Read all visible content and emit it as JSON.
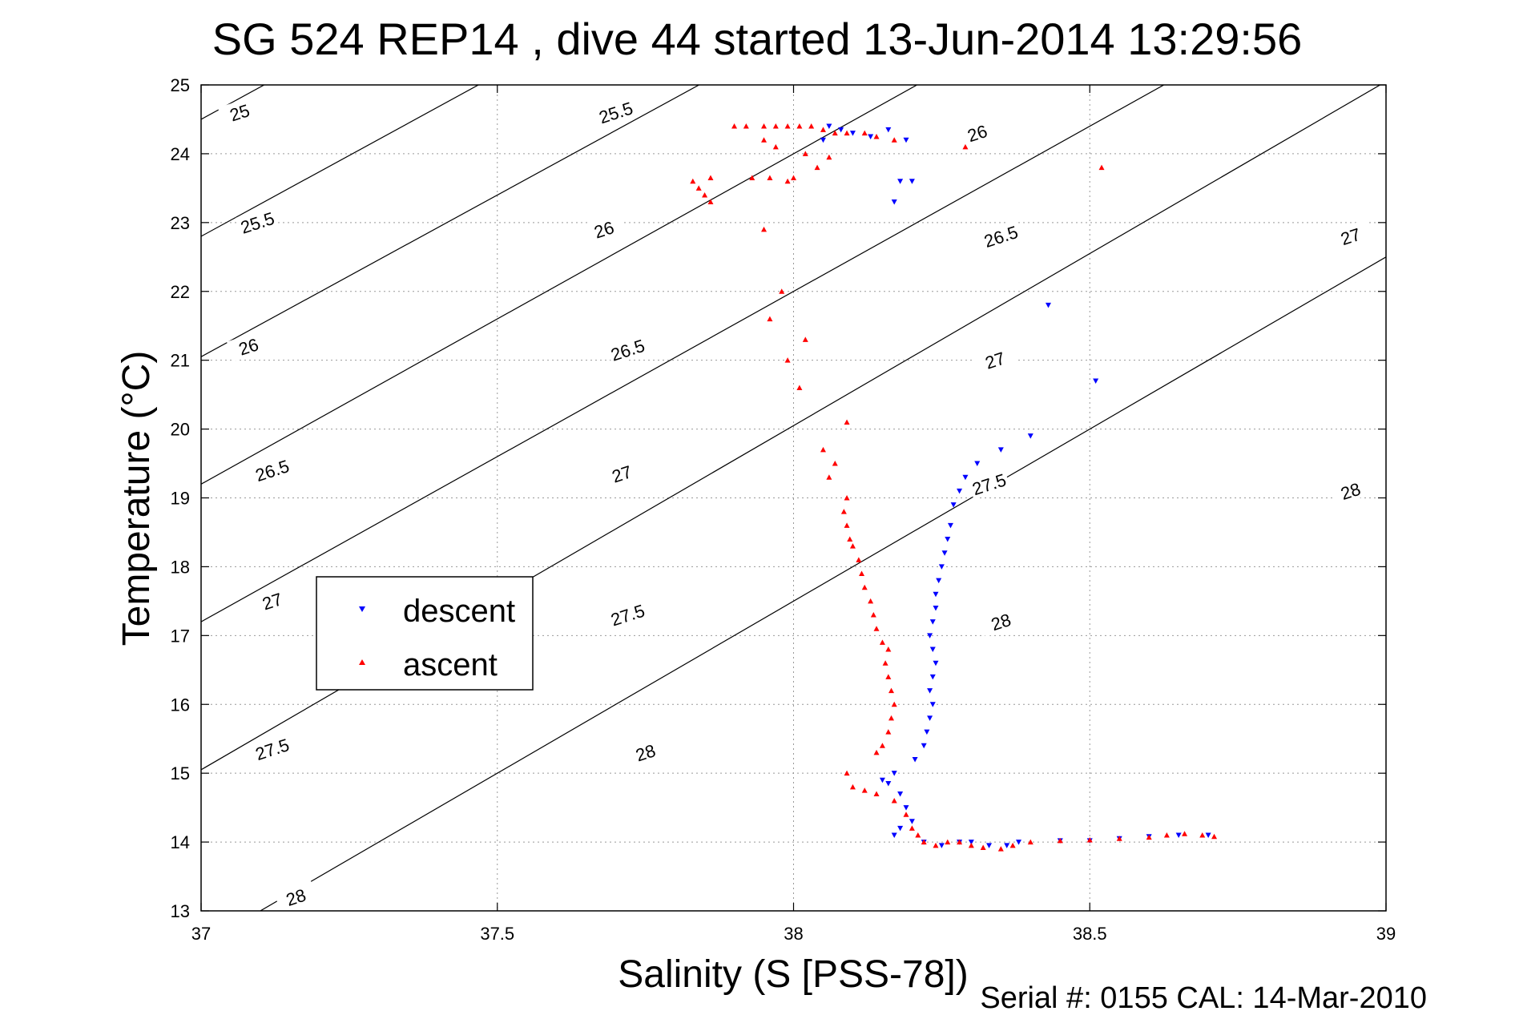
{
  "chart_data": {
    "type": "scatter",
    "title": "SG 524   REP14  , dive 44 started 13-Jun-2014 13:29:56",
    "xlabel": "Salinity (S [PSS-78])",
    "ylabel": "Temperature (°C)",
    "xlim": [
      37,
      39
    ],
    "ylim": [
      13,
      25
    ],
    "x_ticks": [
      "37",
      "37.5",
      "38",
      "38.5",
      "39"
    ],
    "y_ticks": [
      "13",
      "14",
      "15",
      "16",
      "17",
      "18",
      "19",
      "20",
      "21",
      "22",
      "23",
      "24",
      "25"
    ],
    "grid": true,
    "legend_position": "middle-left",
    "footer": "Serial #: 0155  CAL: 14-Mar-2010",
    "contours": [
      {
        "label": "25",
        "S0": 37.0,
        "T0": 24.5,
        "slope": 4.7
      },
      {
        "label": "25.5",
        "S0": 37.0,
        "T0": 22.8,
        "slope": 4.7
      },
      {
        "label": "26",
        "S0": 37.0,
        "T0": 21.05,
        "slope": 4.7
      },
      {
        "label": "26.5",
        "S0": 37.0,
        "T0": 19.2,
        "slope": 4.8
      },
      {
        "label": "27",
        "S0": 37.0,
        "T0": 17.2,
        "slope": 4.8
      },
      {
        "label": "27.5",
        "S0": 37.0,
        "T0": 15.05,
        "slope": 5.0
      },
      {
        "label": "28",
        "S0": 37.0,
        "T0": 12.5,
        "slope": 5.0
      }
    ],
    "contour_labels": [
      {
        "text": "25",
        "x": 37.065,
        "y": 24.6
      },
      {
        "text": "25.5",
        "x": 37.095,
        "y": 23.0
      },
      {
        "text": "26",
        "x": 37.08,
        "y": 21.2
      },
      {
        "text": "26.5",
        "x": 37.12,
        "y": 19.4
      },
      {
        "text": "27",
        "x": 37.12,
        "y": 17.5
      },
      {
        "text": "27.5",
        "x": 37.12,
        "y": 15.35
      },
      {
        "text": "28",
        "x": 37.16,
        "y": 13.2
      },
      {
        "text": "25.5",
        "x": 37.7,
        "y": 24.6
      },
      {
        "text": "26",
        "x": 37.68,
        "y": 22.9
      },
      {
        "text": "26.5",
        "x": 37.72,
        "y": 21.15
      },
      {
        "text": "27",
        "x": 37.71,
        "y": 19.35
      },
      {
        "text": "27.5",
        "x": 37.72,
        "y": 17.3
      },
      {
        "text": "28",
        "x": 37.75,
        "y": 15.3
      },
      {
        "text": "26",
        "x": 38.31,
        "y": 24.3
      },
      {
        "text": "26.5",
        "x": 38.35,
        "y": 22.8
      },
      {
        "text": "27",
        "x": 38.34,
        "y": 21.0
      },
      {
        "text": "27.5",
        "x": 38.33,
        "y": 19.2
      },
      {
        "text": "28",
        "x": 38.35,
        "y": 17.2
      },
      {
        "text": "27",
        "x": 38.94,
        "y": 22.8
      },
      {
        "text": "28",
        "x": 38.94,
        "y": 19.1
      }
    ],
    "series": [
      {
        "name": "descent",
        "color": "#0000ff",
        "marker": "triangle-down",
        "points": [
          [
            38.06,
            24.4
          ],
          [
            38.08,
            24.35
          ],
          [
            38.1,
            24.3
          ],
          [
            38.13,
            24.25
          ],
          [
            38.16,
            24.35
          ],
          [
            38.19,
            24.2
          ],
          [
            38.05,
            24.2
          ],
          [
            38.18,
            23.6
          ],
          [
            38.2,
            23.6
          ],
          [
            38.17,
            23.3
          ],
          [
            38.43,
            21.8
          ],
          [
            38.51,
            20.7
          ],
          [
            38.4,
            19.9
          ],
          [
            38.35,
            19.7
          ],
          [
            38.31,
            19.5
          ],
          [
            38.29,
            19.3
          ],
          [
            38.28,
            19.1
          ],
          [
            38.27,
            18.9
          ],
          [
            38.265,
            18.6
          ],
          [
            38.26,
            18.4
          ],
          [
            38.255,
            18.2
          ],
          [
            38.25,
            18.0
          ],
          [
            38.245,
            17.8
          ],
          [
            38.24,
            17.6
          ],
          [
            38.24,
            17.4
          ],
          [
            38.235,
            17.2
          ],
          [
            38.23,
            17.0
          ],
          [
            38.235,
            16.8
          ],
          [
            38.24,
            16.6
          ],
          [
            38.235,
            16.4
          ],
          [
            38.23,
            16.2
          ],
          [
            38.235,
            16.0
          ],
          [
            38.23,
            15.8
          ],
          [
            38.225,
            15.6
          ],
          [
            38.22,
            15.4
          ],
          [
            38.205,
            15.2
          ],
          [
            38.17,
            15.0
          ],
          [
            38.16,
            14.85
          ],
          [
            38.15,
            14.9
          ],
          [
            38.18,
            14.7
          ],
          [
            38.19,
            14.5
          ],
          [
            38.2,
            14.3
          ],
          [
            38.18,
            14.2
          ],
          [
            38.17,
            14.1
          ],
          [
            38.22,
            14.0
          ],
          [
            38.25,
            13.95
          ],
          [
            38.28,
            14.0
          ],
          [
            38.3,
            14.0
          ],
          [
            38.33,
            13.95
          ],
          [
            38.36,
            13.95
          ],
          [
            38.38,
            14.0
          ],
          [
            38.45,
            14.02
          ],
          [
            38.5,
            14.02
          ],
          [
            38.55,
            14.05
          ],
          [
            38.6,
            14.08
          ],
          [
            38.65,
            14.1
          ],
          [
            38.7,
            14.1
          ]
        ]
      },
      {
        "name": "ascent",
        "color": "#ff0000",
        "marker": "triangle-up",
        "points": [
          [
            37.9,
            24.4
          ],
          [
            37.92,
            24.4
          ],
          [
            37.95,
            24.4
          ],
          [
            37.97,
            24.4
          ],
          [
            37.99,
            24.4
          ],
          [
            38.01,
            24.4
          ],
          [
            38.03,
            24.4
          ],
          [
            38.05,
            24.35
          ],
          [
            38.07,
            24.3
          ],
          [
            38.09,
            24.3
          ],
          [
            38.12,
            24.3
          ],
          [
            38.14,
            24.25
          ],
          [
            38.17,
            24.2
          ],
          [
            38.29,
            24.1
          ],
          [
            38.52,
            23.8
          ],
          [
            37.95,
            24.2
          ],
          [
            37.97,
            24.1
          ],
          [
            38.02,
            24.0
          ],
          [
            38.06,
            23.95
          ],
          [
            38.04,
            23.8
          ],
          [
            38.0,
            23.65
          ],
          [
            37.99,
            23.6
          ],
          [
            37.93,
            23.65
          ],
          [
            37.96,
            23.65
          ],
          [
            37.86,
            23.65
          ],
          [
            37.83,
            23.6
          ],
          [
            37.84,
            23.5
          ],
          [
            37.85,
            23.4
          ],
          [
            37.86,
            23.3
          ],
          [
            37.95,
            22.9
          ],
          [
            37.98,
            22.0
          ],
          [
            37.96,
            21.6
          ],
          [
            38.02,
            21.3
          ],
          [
            37.99,
            21.0
          ],
          [
            38.01,
            20.6
          ],
          [
            38.09,
            20.1
          ],
          [
            38.05,
            19.7
          ],
          [
            38.07,
            19.5
          ],
          [
            38.06,
            19.3
          ],
          [
            38.09,
            19.0
          ],
          [
            38.085,
            18.8
          ],
          [
            38.09,
            18.6
          ],
          [
            38.095,
            18.4
          ],
          [
            38.1,
            18.3
          ],
          [
            38.11,
            18.1
          ],
          [
            38.115,
            17.9
          ],
          [
            38.12,
            17.7
          ],
          [
            38.13,
            17.5
          ],
          [
            38.135,
            17.3
          ],
          [
            38.14,
            17.1
          ],
          [
            38.15,
            16.9
          ],
          [
            38.16,
            16.8
          ],
          [
            38.155,
            16.6
          ],
          [
            38.16,
            16.4
          ],
          [
            38.165,
            16.2
          ],
          [
            38.17,
            16.0
          ],
          [
            38.165,
            15.8
          ],
          [
            38.16,
            15.6
          ],
          [
            38.15,
            15.4
          ],
          [
            38.14,
            15.3
          ],
          [
            38.09,
            15.0
          ],
          [
            38.1,
            14.8
          ],
          [
            38.12,
            14.75
          ],
          [
            38.14,
            14.7
          ],
          [
            38.17,
            14.6
          ],
          [
            38.19,
            14.4
          ],
          [
            38.2,
            14.2
          ],
          [
            38.21,
            14.1
          ],
          [
            38.22,
            14.0
          ],
          [
            38.24,
            13.95
          ],
          [
            38.26,
            14.0
          ],
          [
            38.28,
            14.0
          ],
          [
            38.3,
            13.95
          ],
          [
            38.32,
            13.92
          ],
          [
            38.35,
            13.9
          ],
          [
            38.37,
            13.95
          ],
          [
            38.4,
            14.0
          ],
          [
            38.45,
            14.02
          ],
          [
            38.5,
            14.03
          ],
          [
            38.55,
            14.05
          ],
          [
            38.6,
            14.07
          ],
          [
            38.63,
            14.1
          ],
          [
            38.66,
            14.12
          ],
          [
            38.69,
            14.1
          ],
          [
            38.71,
            14.08
          ]
        ]
      }
    ]
  }
}
